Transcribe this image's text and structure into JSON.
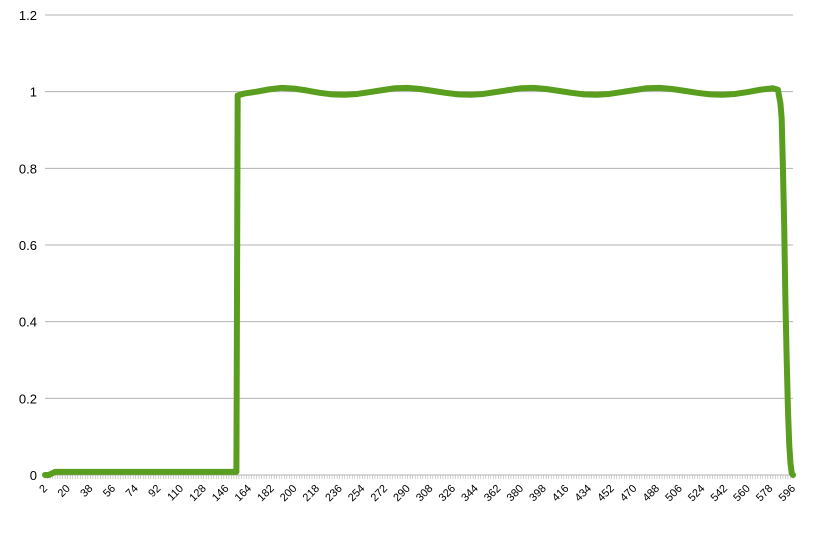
{
  "chart_data": {
    "type": "line",
    "title": "",
    "xlabel": "",
    "ylabel": "",
    "xlim": [
      2,
      596
    ],
    "ylim": [
      0,
      1.2
    ],
    "yticks": [
      0,
      0.2,
      0.4,
      0.6,
      0.8,
      1,
      1.2
    ],
    "ytick_labels": [
      "0",
      "0.2",
      "0.4",
      "0.6",
      "0.8",
      "1",
      "1.2"
    ],
    "xtick_labels": [
      "2",
      "20",
      "38",
      "56",
      "74",
      "92",
      "110",
      "128",
      "146",
      "164",
      "182",
      "200",
      "218",
      "236",
      "254",
      "272",
      "290",
      "308",
      "326",
      "344",
      "362",
      "380",
      "398",
      "416",
      "434",
      "452",
      "470",
      "488",
      "506",
      "524",
      "542",
      "560",
      "578",
      "596"
    ],
    "grid": "horizontal",
    "legend": "none",
    "series": [
      {
        "color": "#5a9e1f",
        "x": [
          2,
          5,
          10,
          20,
          40,
          60,
          80,
          100,
          120,
          140,
          150,
          154,
          155,
          160,
          170,
          180,
          190,
          200,
          210,
          220,
          230,
          240,
          250,
          260,
          270,
          280,
          290,
          300,
          310,
          320,
          330,
          340,
          350,
          360,
          370,
          380,
          390,
          400,
          410,
          420,
          430,
          440,
          450,
          460,
          470,
          480,
          490,
          500,
          510,
          520,
          530,
          540,
          550,
          560,
          570,
          580,
          584,
          586,
          587,
          588,
          589,
          590,
          591,
          592,
          593,
          594,
          595,
          596
        ],
        "y": [
          0.0,
          0.0,
          0.008,
          0.008,
          0.008,
          0.008,
          0.008,
          0.008,
          0.008,
          0.008,
          0.008,
          0.008,
          0.99,
          0.995,
          1.0,
          1.006,
          1.01,
          1.008,
          1.003,
          0.997,
          0.993,
          0.992,
          0.994,
          0.999,
          1.004,
          1.009,
          1.01,
          1.007,
          1.002,
          0.997,
          0.993,
          0.992,
          0.994,
          0.999,
          1.004,
          1.009,
          1.01,
          1.007,
          1.002,
          0.997,
          0.993,
          0.992,
          0.994,
          0.999,
          1.004,
          1.009,
          1.01,
          1.007,
          1.002,
          0.997,
          0.993,
          0.992,
          0.994,
          0.999,
          1.005,
          1.009,
          1.005,
          0.97,
          0.93,
          0.8,
          0.65,
          0.45,
          0.3,
          0.17,
          0.08,
          0.03,
          0.005,
          0.0
        ]
      }
    ]
  }
}
